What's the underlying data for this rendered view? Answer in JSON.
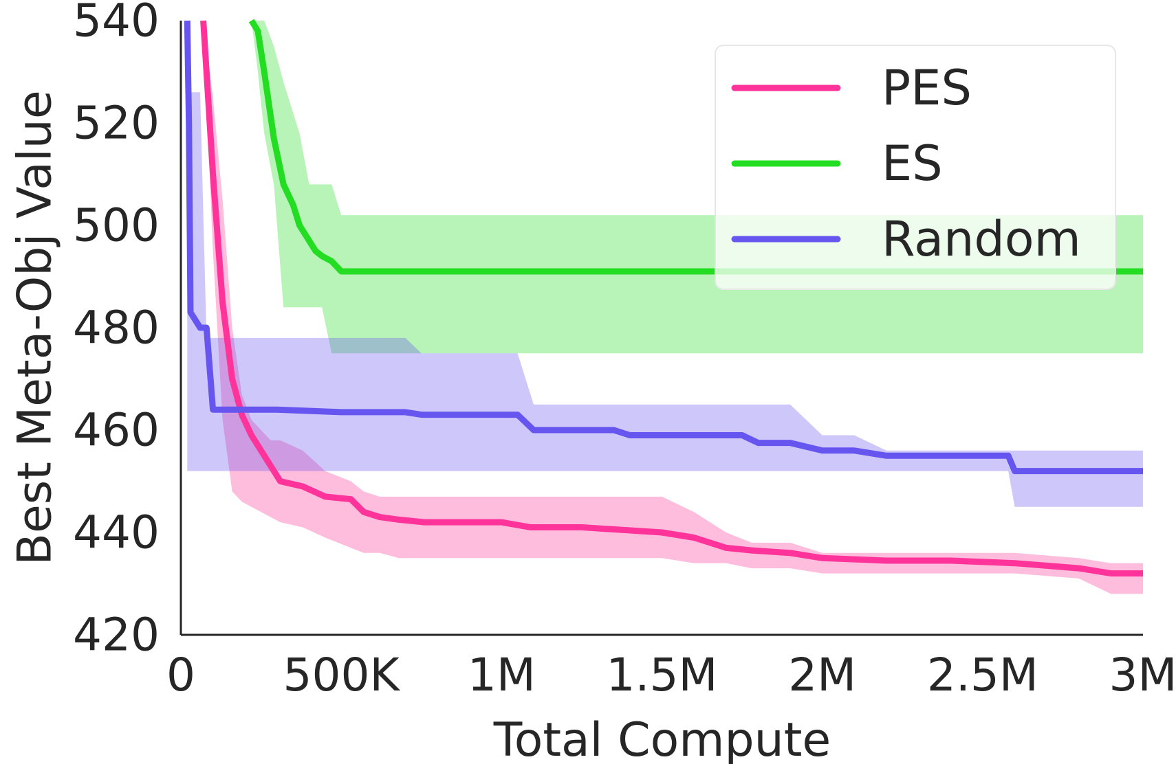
{
  "chart_data": {
    "type": "line",
    "title": "",
    "xlabel": "Total Compute",
    "ylabel": "Best Meta-Obj Value",
    "xlim": [
      0,
      3000000
    ],
    "ylim": [
      420,
      540
    ],
    "x_ticks": [
      0,
      500000,
      1000000,
      1500000,
      2000000,
      2500000,
      3000000
    ],
    "x_tick_labels": [
      "0",
      "500K",
      "1M",
      "1.5M",
      "2M",
      "2.5M",
      "3M"
    ],
    "y_ticks": [
      420,
      440,
      460,
      480,
      500,
      520,
      540
    ],
    "y_tick_labels": [
      "420",
      "440",
      "460",
      "480",
      "500",
      "520",
      "540"
    ],
    "grid": false,
    "legend_position": "top-right",
    "series": [
      {
        "name": "PES",
        "color": "#ff3399",
        "x": [
          70000,
          100000,
          130000,
          160000,
          190000,
          220000,
          250000,
          280000,
          310000,
          380000,
          450000,
          530000,
          570000,
          620000,
          680000,
          760000,
          1000000,
          1090000,
          1250000,
          1500000,
          1600000,
          1700000,
          1780000,
          1900000,
          2000000,
          2200000,
          2400000,
          2600000,
          2800000,
          2900000,
          3000000
        ],
        "y": [
          540,
          510,
          485,
          470,
          463,
          459,
          456,
          453,
          450,
          449,
          447,
          446.5,
          444,
          443,
          442.5,
          442,
          442,
          441,
          441,
          440,
          439,
          437,
          436.5,
          436,
          435,
          434.5,
          434.5,
          434,
          433,
          432,
          432
        ],
        "upper": [
          540,
          525,
          505,
          480,
          467,
          462,
          460,
          458,
          458,
          456,
          452,
          450,
          448,
          447,
          447,
          447,
          447,
          447,
          447,
          447,
          444,
          440,
          438,
          438,
          436,
          436,
          436,
          436,
          435,
          434,
          434
        ],
        "lower": [
          540,
          495,
          462,
          448,
          446,
          445,
          444,
          443,
          442,
          441,
          439,
          437,
          436,
          436,
          435,
          435,
          435,
          435,
          435,
          435,
          434,
          434,
          433,
          433,
          432,
          432,
          432,
          432,
          431,
          428,
          428
        ]
      },
      {
        "name": "ES",
        "color": "#22dd22",
        "x": [
          220000,
          240000,
          260000,
          290000,
          320000,
          350000,
          370000,
          400000,
          420000,
          440000,
          470000,
          500000,
          600000,
          1000000,
          2000000,
          3000000
        ],
        "y": [
          540,
          538,
          530,
          517,
          508,
          504,
          500,
          497,
          495,
          494,
          493,
          491,
          491,
          491,
          491,
          491
        ],
        "upper": [
          540,
          540,
          540,
          535,
          528,
          522,
          518,
          508,
          508,
          508,
          508,
          502,
          502,
          502,
          502,
          502
        ],
        "lower": [
          540,
          530,
          518,
          508,
          484,
          484,
          484,
          484,
          484,
          484,
          475,
          475,
          475,
          475,
          475,
          475
        ]
      },
      {
        "name": "Random",
        "color": "#6655ee",
        "x": [
          20000,
          25000,
          30000,
          40000,
          60000,
          80000,
          100000,
          300000,
          500000,
          700000,
          750000,
          1050000,
          1100000,
          1350000,
          1400000,
          1750000,
          1800000,
          1900000,
          2000000,
          2100000,
          2200000,
          2400000,
          2500000,
          2580000,
          2600000,
          2800000,
          3000000
        ],
        "y": [
          540,
          520,
          483,
          482,
          480,
          480,
          464,
          464,
          463.5,
          463.5,
          463,
          463,
          460,
          460,
          459,
          459,
          457.5,
          457.5,
          456,
          456,
          455,
          455,
          455,
          455,
          452,
          452,
          452
        ],
        "upper": [
          540,
          530,
          526,
          526,
          526,
          478,
          478,
          478,
          478,
          478,
          475,
          475,
          465,
          465,
          465,
          465,
          465,
          465,
          459,
          459,
          456,
          456,
          456,
          456,
          456,
          456,
          456
        ],
        "lower": [
          452,
          452,
          452,
          452,
          452,
          452,
          452,
          452,
          452,
          452,
          452,
          452,
          452,
          452,
          452,
          452,
          452,
          452,
          452,
          452,
          452,
          452,
          452,
          452,
          445,
          445,
          445
        ]
      }
    ]
  }
}
